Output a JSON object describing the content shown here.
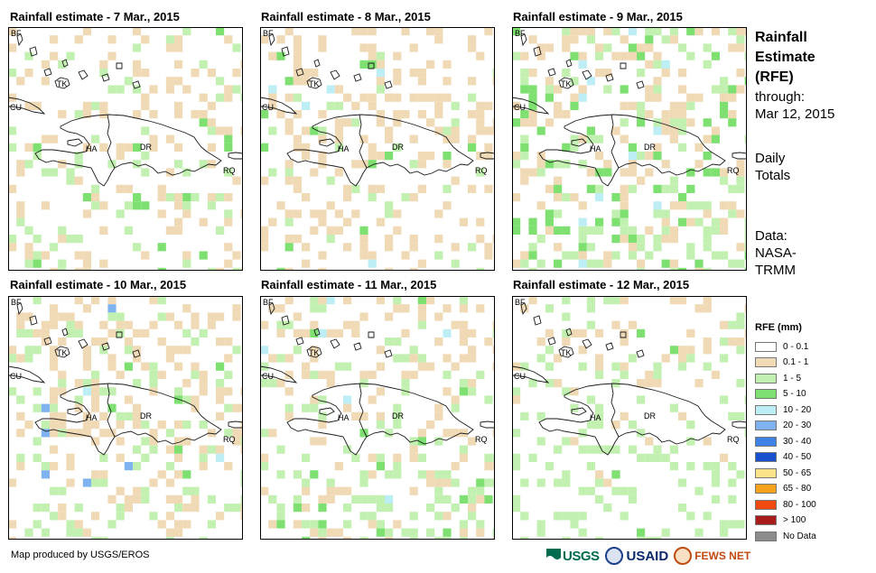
{
  "side": {
    "title": [
      "Rainfall",
      "Estimate",
      "(RFE)"
    ],
    "through_label": "through:",
    "through_date": "Mar 12, 2015",
    "totals": [
      "Daily",
      "Totals"
    ],
    "data_source": [
      "Data:",
      "NASA-",
      "TRMM"
    ]
  },
  "legend": {
    "title": "RFE (mm)",
    "items": [
      {
        "label": "0 - 0.1",
        "color": "#ffffff"
      },
      {
        "label": "0.1 - 1",
        "color": "#f0d9b5"
      },
      {
        "label": "1 - 5",
        "color": "#c2f0b0"
      },
      {
        "label": "5 - 10",
        "color": "#7de070"
      },
      {
        "label": "10 - 20",
        "color": "#bdeef6"
      },
      {
        "label": "20 - 30",
        "color": "#7fb3f0"
      },
      {
        "label": "30 - 40",
        "color": "#3f82e6"
      },
      {
        "label": "40 - 50",
        "color": "#1a4fd0"
      },
      {
        "label": "50 - 65",
        "color": "#fbe38a"
      },
      {
        "label": "65 - 80",
        "color": "#f7a21a"
      },
      {
        "label": "80 - 100",
        "color": "#f04a10"
      },
      {
        "label": "> 100",
        "color": "#a81c1c"
      },
      {
        "label": "No Data",
        "color": "#8c8c8c"
      }
    ]
  },
  "place_labels": {
    "bf": "BF",
    "tk": "TK",
    "cu": "CU",
    "ha": "HA",
    "dr": "DR",
    "rq": "RQ"
  },
  "panels": [
    {
      "title": "Rainfall estimate - 7 Mar., 2015",
      "seed": 7,
      "tan_density": 0.16,
      "green_density": 0.08,
      "bright_density": 0.01,
      "cyan_density": 0.0,
      "blue_density": 0.0
    },
    {
      "title": "Rainfall estimate - 8 Mar., 2015",
      "seed": 8,
      "tan_density": 0.2,
      "green_density": 0.05,
      "bright_density": 0.015,
      "cyan_density": 0.005,
      "blue_density": 0.0
    },
    {
      "title": "Rainfall estimate - 9 Mar., 2015",
      "seed": 9,
      "tan_density": 0.14,
      "green_density": 0.14,
      "bright_density": 0.06,
      "cyan_density": 0.015,
      "blue_density": 0.0
    },
    {
      "title": "Rainfall estimate - 10 Mar., 2015",
      "seed": 10,
      "tan_density": 0.2,
      "green_density": 0.12,
      "bright_density": 0.01,
      "cyan_density": 0.005,
      "blue_density": 0.004
    },
    {
      "title": "Rainfall estimate - 11 Mar., 2015",
      "seed": 11,
      "tan_density": 0.15,
      "green_density": 0.12,
      "bright_density": 0.01,
      "cyan_density": 0.008,
      "blue_density": 0.0
    },
    {
      "title": "Rainfall estimate - 12 Mar., 2015",
      "seed": 12,
      "tan_density": 0.05,
      "green_density": 0.16,
      "bright_density": 0.005,
      "cyan_density": 0.0,
      "blue_density": 0.0
    }
  ],
  "credit": "Map produced by USGS/EROS",
  "logos": {
    "usgs": "USGS",
    "usaid": "USAID",
    "fews": "FEWS NET"
  }
}
